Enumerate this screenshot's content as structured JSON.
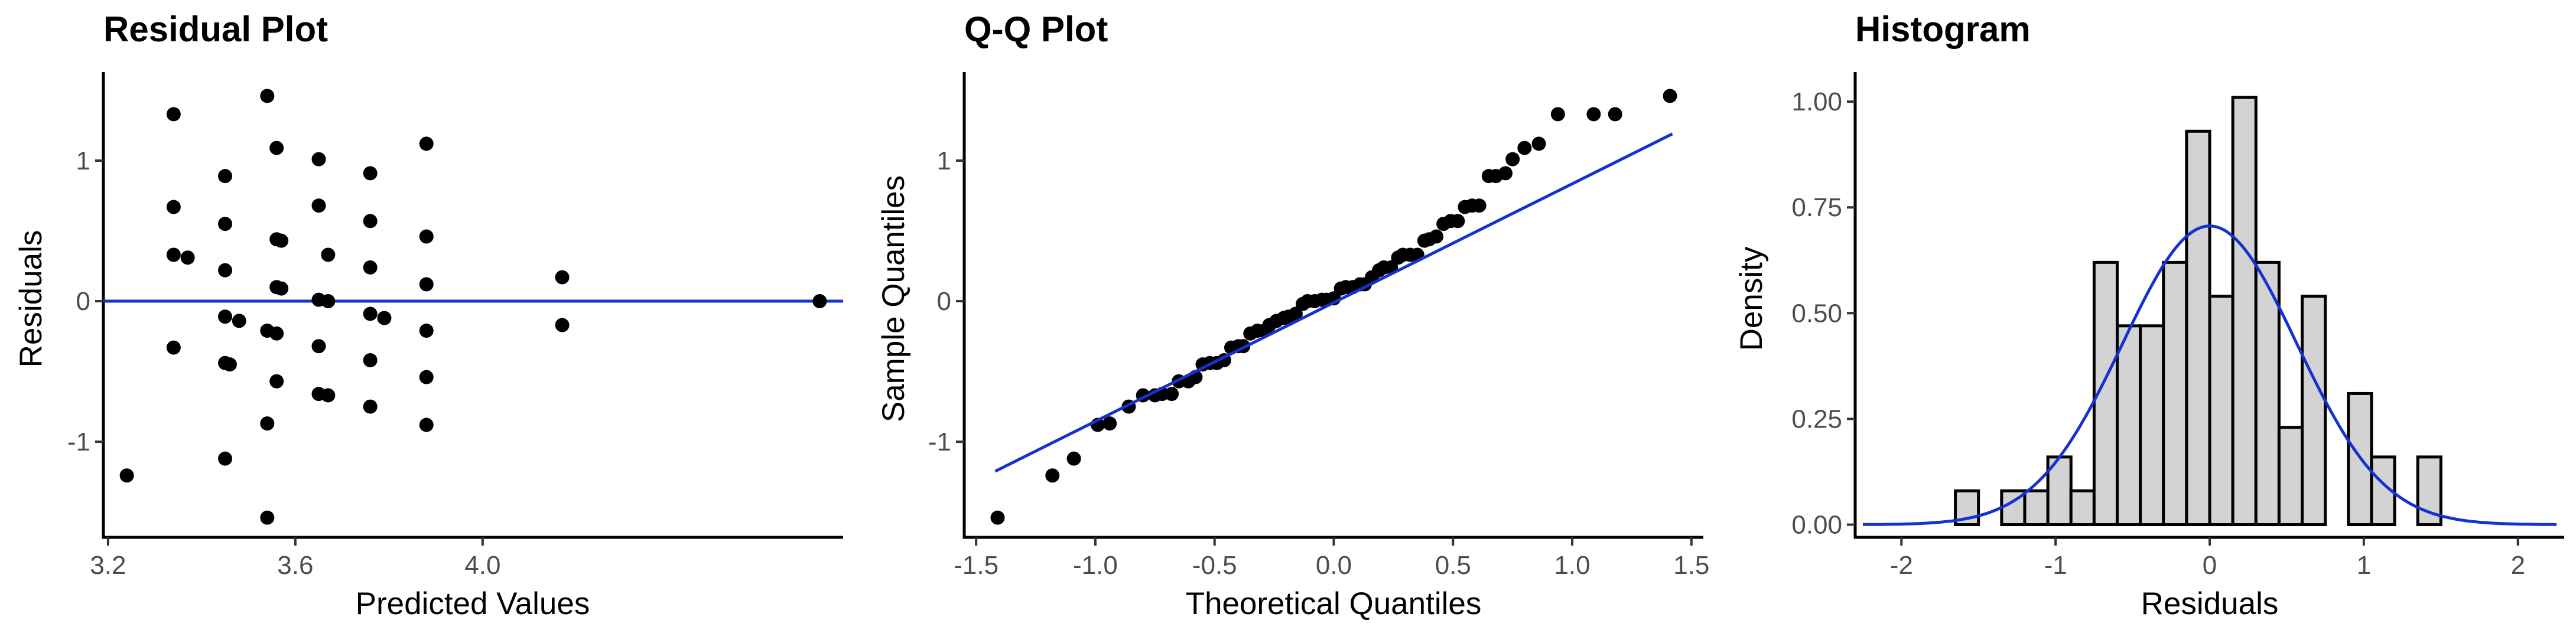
{
  "chart_data": [
    {
      "type": "scatter",
      "title": "Residual Plot",
      "xlabel": "Predicted Values",
      "ylabel": "Residuals",
      "xlim": [
        3.19,
        4.77
      ],
      "ylim": [
        -1.68,
        1.63
      ],
      "xticks": [
        "3.2",
        "3.6",
        "4.0"
      ],
      "xtick_values": [
        3.2,
        3.6,
        4.0
      ],
      "yticks": [
        "-1",
        "0",
        "1"
      ],
      "ytick_values": [
        -1,
        0,
        1
      ],
      "reference_line": {
        "y": 0,
        "color": "#1432d2"
      },
      "grid": false,
      "points": [
        [
          3.24,
          -1.24
        ],
        [
          3.34,
          1.33
        ],
        [
          3.34,
          0.67
        ],
        [
          3.34,
          0.33
        ],
        [
          3.34,
          -0.33
        ],
        [
          3.37,
          0.31
        ],
        [
          3.45,
          0.89
        ],
        [
          3.45,
          0.55
        ],
        [
          3.45,
          0.22
        ],
        [
          3.45,
          -0.11
        ],
        [
          3.45,
          -0.44
        ],
        [
          3.46,
          -0.45
        ],
        [
          3.45,
          -1.12
        ],
        [
          3.48,
          -0.14
        ],
        [
          3.54,
          1.46
        ],
        [
          3.54,
          -0.21
        ],
        [
          3.54,
          -0.87
        ],
        [
          3.54,
          -1.54
        ],
        [
          3.56,
          1.09
        ],
        [
          3.56,
          0.44
        ],
        [
          3.57,
          0.43
        ],
        [
          3.56,
          0.1
        ],
        [
          3.57,
          0.09
        ],
        [
          3.56,
          -0.23
        ],
        [
          3.56,
          -0.57
        ],
        [
          3.65,
          1.01
        ],
        [
          3.65,
          0.68
        ],
        [
          3.65,
          0.01
        ],
        [
          3.65,
          -0.32
        ],
        [
          3.65,
          -0.66
        ],
        [
          3.67,
          0.33
        ],
        [
          3.67,
          0.0
        ],
        [
          3.67,
          -0.67
        ],
        [
          3.76,
          0.91
        ],
        [
          3.76,
          0.57
        ],
        [
          3.76,
          0.24
        ],
        [
          3.76,
          -0.09
        ],
        [
          3.76,
          -0.42
        ],
        [
          3.76,
          -0.75
        ],
        [
          3.79,
          -0.12
        ],
        [
          3.88,
          1.12
        ],
        [
          3.88,
          0.46
        ],
        [
          3.88,
          0.12
        ],
        [
          3.88,
          -0.21
        ],
        [
          3.88,
          -0.54
        ],
        [
          3.88,
          -0.88
        ],
        [
          4.17,
          0.17
        ],
        [
          4.17,
          -0.17
        ],
        [
          4.72,
          0.0
        ]
      ]
    },
    {
      "type": "scatter",
      "title": "Q-Q Plot",
      "xlabel": "Theoretical Quantiles",
      "ylabel": "Sample Quantiles",
      "xlim": [
        -1.55,
        1.55
      ],
      "ylim": [
        -1.68,
        1.63
      ],
      "xticks": [
        "-1.5",
        "-1.0",
        "-0.5",
        "0.0",
        "0.5",
        "1.0",
        "1.5"
      ],
      "xtick_values": [
        -1.5,
        -1.0,
        -0.5,
        0.0,
        0.5,
        1.0,
        1.5
      ],
      "yticks": [
        "-1",
        "0",
        "1"
      ],
      "ytick_values": [
        -1,
        0,
        1
      ],
      "reference_line": {
        "x": [
          -1.42,
          1.42
        ],
        "y": [
          -1.21,
          1.19
        ],
        "color": "#1432d2"
      },
      "grid": false,
      "points": [
        [
          -1.41,
          -1.54
        ],
        [
          -1.18,
          -1.24
        ],
        [
          -1.09,
          -1.12
        ],
        [
          -0.99,
          -0.88
        ],
        [
          -0.94,
          -0.87
        ],
        [
          -0.86,
          -0.75
        ],
        [
          -0.8,
          -0.67
        ],
        [
          -0.75,
          -0.67
        ],
        [
          -0.72,
          -0.66
        ],
        [
          -0.68,
          -0.66
        ],
        [
          -0.65,
          -0.57
        ],
        [
          -0.61,
          -0.57
        ],
        [
          -0.58,
          -0.54
        ],
        [
          -0.55,
          -0.45
        ],
        [
          -0.52,
          -0.44
        ],
        [
          -0.49,
          -0.44
        ],
        [
          -0.46,
          -0.42
        ],
        [
          -0.43,
          -0.33
        ],
        [
          -0.4,
          -0.32
        ],
        [
          -0.38,
          -0.32
        ],
        [
          -0.35,
          -0.23
        ],
        [
          -0.32,
          -0.21
        ],
        [
          -0.29,
          -0.21
        ],
        [
          -0.27,
          -0.17
        ],
        [
          -0.24,
          -0.14
        ],
        [
          -0.21,
          -0.12
        ],
        [
          -0.19,
          -0.11
        ],
        [
          -0.16,
          -0.09
        ],
        [
          -0.13,
          -0.02
        ],
        [
          -0.11,
          0.0
        ],
        [
          -0.08,
          0.0
        ],
        [
          -0.05,
          0.01
        ],
        [
          -0.03,
          0.01
        ],
        [
          0.0,
          0.02
        ],
        [
          0.03,
          0.09
        ],
        [
          0.05,
          0.1
        ],
        [
          0.08,
          0.1
        ],
        [
          0.11,
          0.12
        ],
        [
          0.13,
          0.12
        ],
        [
          0.16,
          0.17
        ],
        [
          0.19,
          0.22
        ],
        [
          0.21,
          0.24
        ],
        [
          0.24,
          0.24
        ],
        [
          0.27,
          0.31
        ],
        [
          0.29,
          0.33
        ],
        [
          0.32,
          0.33
        ],
        [
          0.35,
          0.33
        ],
        [
          0.38,
          0.43
        ],
        [
          0.4,
          0.44
        ],
        [
          0.43,
          0.46
        ],
        [
          0.46,
          0.55
        ],
        [
          0.49,
          0.57
        ],
        [
          0.52,
          0.57
        ],
        [
          0.55,
          0.67
        ],
        [
          0.58,
          0.68
        ],
        [
          0.61,
          0.68
        ],
        [
          0.65,
          0.89
        ],
        [
          0.68,
          0.89
        ],
        [
          0.72,
          0.91
        ],
        [
          0.75,
          1.01
        ],
        [
          0.8,
          1.09
        ],
        [
          0.86,
          1.12
        ],
        [
          0.94,
          1.33
        ],
        [
          1.09,
          1.33
        ],
        [
          1.18,
          1.33
        ],
        [
          1.41,
          1.46
        ]
      ]
    },
    {
      "type": "bar",
      "title": "Histogram",
      "xlabel": "Residuals",
      "ylabel": "Density",
      "xlim": [
        -2.3,
        2.3
      ],
      "ylim": [
        -0.03,
        1.07
      ],
      "xticks": [
        "-2",
        "-1",
        "0",
        "1",
        "2"
      ],
      "xtick_values": [
        -2,
        -1,
        0,
        1,
        2
      ],
      "yticks": [
        "0.00",
        "0.25",
        "0.50",
        "0.75",
        "1.00"
      ],
      "ytick_values": [
        0.0,
        0.25,
        0.5,
        0.75,
        1.0
      ],
      "bin_edges": [
        -1.65,
        -1.5,
        -1.35,
        -1.2,
        -1.05,
        -0.9,
        -0.75,
        -0.6,
        -0.45,
        -0.3,
        -0.15,
        0.0,
        0.15,
        0.3,
        0.45,
        0.6,
        0.75,
        0.9,
        1.05,
        1.2,
        1.35,
        1.5
      ],
      "values": [
        0.08,
        0.0,
        0.08,
        0.08,
        0.16,
        0.08,
        0.62,
        0.47,
        0.47,
        0.62,
        0.93,
        0.54,
        1.01,
        0.62,
        0.23,
        0.54,
        0.0,
        0.31,
        0.16,
        0.0,
        0.16
      ],
      "bar_fill": "#d3d3d3",
      "bar_stroke": "#000000",
      "density_curve": {
        "mean": 0,
        "sd": 0.565,
        "range": [
          -2.25,
          2.25
        ],
        "color": "#1432d2"
      },
      "grid": false
    }
  ]
}
